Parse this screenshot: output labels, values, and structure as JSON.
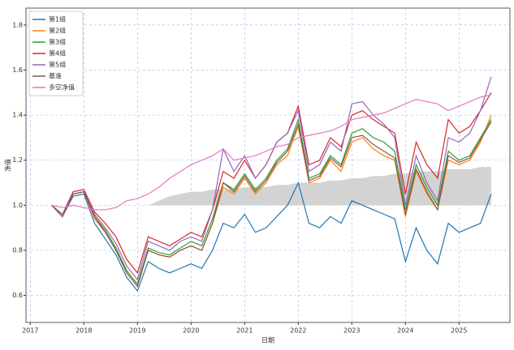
{
  "chart_data": {
    "type": "line",
    "xlabel": "日期",
    "ylabel": "净值",
    "x": [
      2017.4,
      2017.6,
      2017.8,
      2018.0,
      2018.2,
      2018.4,
      2018.6,
      2018.8,
      2019.0,
      2019.2,
      2019.4,
      2019.6,
      2019.8,
      2020.0,
      2020.2,
      2020.4,
      2020.6,
      2020.8,
      2021.0,
      2021.2,
      2021.4,
      2021.6,
      2021.8,
      2022.0,
      2022.2,
      2022.4,
      2022.6,
      2022.8,
      2023.0,
      2023.2,
      2023.4,
      2023.6,
      2023.8,
      2024.0,
      2024.2,
      2024.4,
      2024.6,
      2024.8,
      2025.0,
      2025.2,
      2025.4,
      2025.6
    ],
    "series": [
      {
        "name": "第1组",
        "color": "#1f77b4",
        "values": [
          1.0,
          0.95,
          1.04,
          1.05,
          0.92,
          0.85,
          0.78,
          0.68,
          0.62,
          0.75,
          0.72,
          0.7,
          0.72,
          0.74,
          0.72,
          0.8,
          0.92,
          0.9,
          0.96,
          0.88,
          0.9,
          0.95,
          1.0,
          1.1,
          0.92,
          0.9,
          0.95,
          0.92,
          1.02,
          1.0,
          0.98,
          0.96,
          0.94,
          0.75,
          0.9,
          0.8,
          0.74,
          0.92,
          0.88,
          0.9,
          0.92,
          1.05
        ]
      },
      {
        "name": "第2组",
        "color": "#ff7f0e",
        "values": [
          1.0,
          0.95,
          1.05,
          1.06,
          0.94,
          0.88,
          0.8,
          0.7,
          0.64,
          0.8,
          0.78,
          0.77,
          0.8,
          0.82,
          0.8,
          0.92,
          1.08,
          1.05,
          1.12,
          1.05,
          1.1,
          1.18,
          1.22,
          1.35,
          1.1,
          1.12,
          1.2,
          1.15,
          1.28,
          1.3,
          1.25,
          1.22,
          1.2,
          0.95,
          1.15,
          1.05,
          0.98,
          1.2,
          1.18,
          1.2,
          1.28,
          1.4
        ]
      },
      {
        "name": "第3组",
        "color": "#2ca02c",
        "values": [
          1.0,
          0.95,
          1.05,
          1.06,
          0.95,
          0.89,
          0.81,
          0.71,
          0.65,
          0.81,
          0.79,
          0.78,
          0.81,
          0.84,
          0.82,
          0.94,
          1.1,
          1.07,
          1.14,
          1.07,
          1.12,
          1.2,
          1.25,
          1.38,
          1.12,
          1.14,
          1.22,
          1.18,
          1.32,
          1.34,
          1.3,
          1.28,
          1.24,
          0.98,
          1.18,
          1.08,
          1.0,
          1.24,
          1.2,
          1.22,
          1.3,
          1.38
        ]
      },
      {
        "name": "第4组",
        "color": "#d62728",
        "values": [
          1.0,
          0.96,
          1.06,
          1.07,
          0.97,
          0.92,
          0.86,
          0.76,
          0.7,
          0.86,
          0.84,
          0.82,
          0.85,
          0.88,
          0.86,
          0.98,
          1.15,
          1.12,
          1.2,
          1.12,
          1.18,
          1.28,
          1.32,
          1.44,
          1.18,
          1.2,
          1.3,
          1.26,
          1.4,
          1.42,
          1.38,
          1.35,
          1.32,
          1.05,
          1.28,
          1.18,
          1.12,
          1.38,
          1.32,
          1.35,
          1.42,
          1.5
        ]
      },
      {
        "name": "第5组",
        "color": "#9467bd",
        "values": [
          1.0,
          0.96,
          1.05,
          1.06,
          0.96,
          0.9,
          0.83,
          0.73,
          0.67,
          0.84,
          0.82,
          0.8,
          0.84,
          0.86,
          0.84,
          0.98,
          1.25,
          1.15,
          1.22,
          1.12,
          1.18,
          1.28,
          1.32,
          1.42,
          1.15,
          1.18,
          1.28,
          1.24,
          1.45,
          1.46,
          1.4,
          1.36,
          1.3,
          1.0,
          1.22,
          1.1,
          1.02,
          1.3,
          1.28,
          1.32,
          1.42,
          1.57
        ]
      },
      {
        "name": "基准",
        "color": "#8c564b",
        "values": [
          1.0,
          0.95,
          1.05,
          1.06,
          0.95,
          0.88,
          0.8,
          0.7,
          0.64,
          0.8,
          0.78,
          0.77,
          0.8,
          0.82,
          0.8,
          0.92,
          1.1,
          1.06,
          1.13,
          1.06,
          1.11,
          1.19,
          1.24,
          1.36,
          1.11,
          1.13,
          1.21,
          1.17,
          1.3,
          1.31,
          1.27,
          1.24,
          1.21,
          0.96,
          1.16,
          1.06,
          0.98,
          1.22,
          1.19,
          1.21,
          1.29,
          1.37
        ]
      },
      {
        "name": "多空净值",
        "color": "#e377c2",
        "values": [
          1.0,
          0.99,
          1.0,
          0.99,
          0.98,
          0.98,
          0.99,
          1.02,
          1.03,
          1.05,
          1.08,
          1.12,
          1.15,
          1.18,
          1.2,
          1.22,
          1.25,
          1.2,
          1.21,
          1.22,
          1.24,
          1.26,
          1.27,
          1.3,
          1.31,
          1.32,
          1.33,
          1.35,
          1.38,
          1.39,
          1.4,
          1.41,
          1.43,
          1.45,
          1.47,
          1.46,
          1.45,
          1.42,
          1.44,
          1.46,
          1.48,
          1.49
        ]
      }
    ],
    "area": {
      "color": "#d3d3d3",
      "base": 1,
      "values": [
        1.0,
        1.0,
        1.0,
        1.0,
        1.0,
        1.0,
        1.0,
        1.0,
        1.0,
        1.0,
        1.02,
        1.04,
        1.05,
        1.06,
        1.06,
        1.07,
        1.07,
        1.07,
        1.08,
        1.08,
        1.08,
        1.09,
        1.09,
        1.1,
        1.1,
        1.1,
        1.11,
        1.11,
        1.12,
        1.12,
        1.13,
        1.13,
        1.14,
        1.14,
        1.15,
        1.15,
        1.15,
        1.16,
        1.16,
        1.16,
        1.17,
        1.17
      ]
    },
    "xlim": [
      2016.92,
      2025.95
    ],
    "xticks": [
      2017,
      2018,
      2019,
      2020,
      2021,
      2022,
      2023,
      2024,
      2025
    ],
    "ylim": [
      0.48,
      1.875
    ],
    "yticks": [
      0.6,
      0.8,
      {
        "value": 1,
        "label": "1.0"
      },
      1.2,
      1.4,
      1.6,
      1.8
    ],
    "grid": true,
    "legend": "upper-left"
  }
}
